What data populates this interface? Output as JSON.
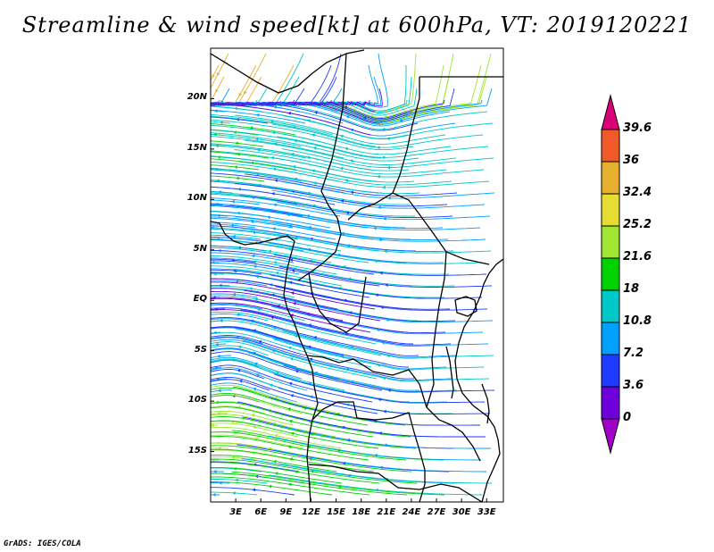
{
  "title": "Streamline & wind speed[kt] at 600hPa, VT: 2019120221",
  "credit": "GrADS: IGES/COLA",
  "map": {
    "lon_range": [
      0,
      35
    ],
    "lat_range": [
      -20,
      25
    ],
    "lat_ticks": [
      {
        "value": 20,
        "label": "20N"
      },
      {
        "value": 15,
        "label": "15N"
      },
      {
        "value": 10,
        "label": "10N"
      },
      {
        "value": 5,
        "label": "5N"
      },
      {
        "value": 0,
        "label": "EQ"
      },
      {
        "value": -5,
        "label": "5S"
      },
      {
        "value": -10,
        "label": "10S"
      },
      {
        "value": -15,
        "label": "15S"
      }
    ],
    "lon_ticks": [
      {
        "value": 3,
        "label": "3E"
      },
      {
        "value": 6,
        "label": "6E"
      },
      {
        "value": 9,
        "label": "9E"
      },
      {
        "value": 12,
        "label": "12E"
      },
      {
        "value": 15,
        "label": "15E"
      },
      {
        "value": 18,
        "label": "18E"
      },
      {
        "value": 21,
        "label": "21E"
      },
      {
        "value": 24,
        "label": "24E"
      },
      {
        "value": 27,
        "label": "27E"
      },
      {
        "value": 30,
        "label": "30E"
      },
      {
        "value": 33,
        "label": "33E"
      }
    ]
  },
  "colorbar": {
    "levels": [
      "0",
      "3.6",
      "7.2",
      "10.8",
      "18",
      "21.6",
      "25.2",
      "32.4",
      "36",
      "39.6"
    ],
    "colors": [
      "#a000c8",
      "#6e00dc",
      "#1e3cff",
      "#00a0ff",
      "#00c8c8",
      "#00d200",
      "#a0e632",
      "#e6dc32",
      "#e6af2d",
      "#f05a28",
      "#dc0078"
    ]
  }
}
